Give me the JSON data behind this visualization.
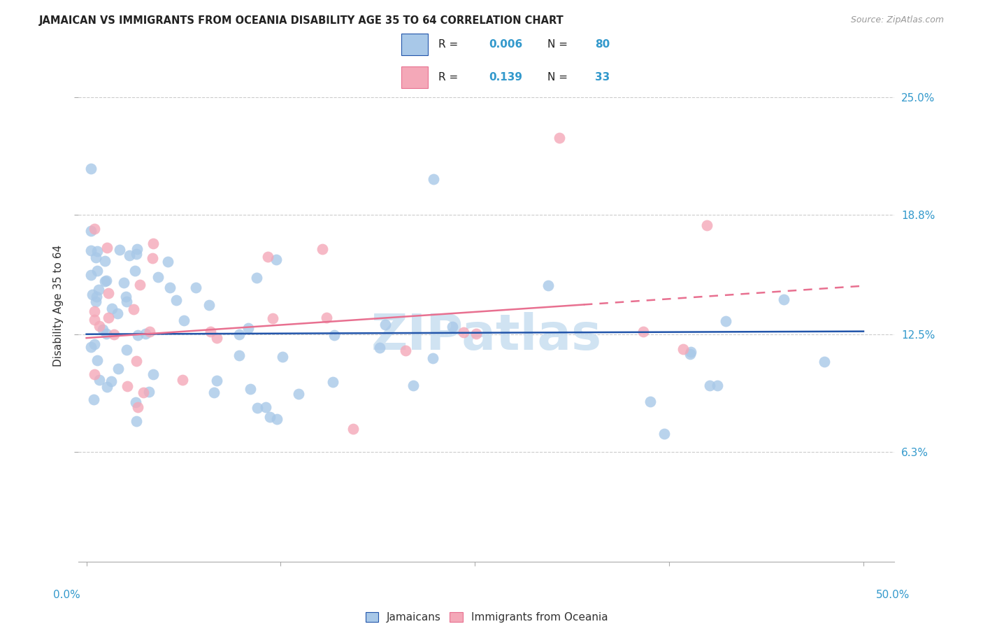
{
  "title": "JAMAICAN VS IMMIGRANTS FROM OCEANIA DISABILITY AGE 35 TO 64 CORRELATION CHART",
  "source": "Source: ZipAtlas.com",
  "ylabel": "Disability Age 35 to 64",
  "ytick_values": [
    6.3,
    12.5,
    18.8,
    25.0
  ],
  "xlim": [
    -0.5,
    52.0
  ],
  "ylim": [
    0.5,
    27.5
  ],
  "blue_color": "#A8C8E8",
  "pink_color": "#F4A8B8",
  "trendline_blue": "#2255AA",
  "trendline_pink": "#E87090",
  "watermark_color": "#C8DEF0",
  "grid_color": "#CCCCCC",
  "right_label_color": "#3399CC",
  "title_color": "#222222",
  "source_color": "#999999"
}
